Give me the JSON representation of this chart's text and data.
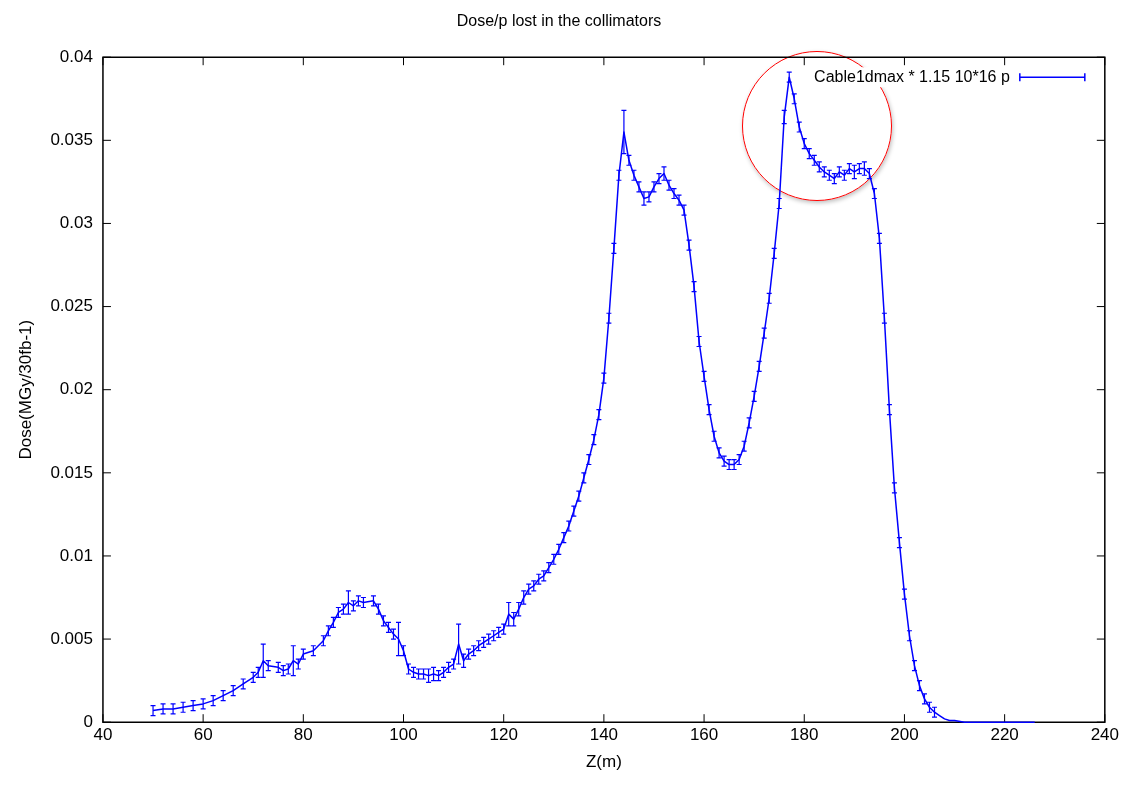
{
  "chart_data": {
    "type": "line",
    "title": "Dose/p lost in the collimators",
    "xlabel": "Z(m)",
    "ylabel": "Dose(MGy/30fb-1)",
    "xlim": [
      40,
      240
    ],
    "xticks": [
      40,
      60,
      80,
      100,
      120,
      140,
      160,
      180,
      200,
      220,
      240
    ],
    "ylim": [
      0,
      0.04
    ],
    "yticks": [
      0,
      0.005,
      0.01,
      0.015,
      0.02,
      0.025,
      0.03,
      0.035,
      0.04
    ],
    "grid": false,
    "legend": "top right",
    "marker": "none",
    "line_style": "solid",
    "series": [
      {
        "name": "Cable1dmax * 1.15 10*16 p",
        "color": "#0000ff",
        "x": [
          50,
          52,
          54,
          56,
          58,
          60,
          62,
          64,
          66,
          68,
          70,
          71,
          72,
          73,
          75,
          76,
          77,
          78,
          79,
          80,
          82,
          84,
          85,
          86,
          87,
          88,
          89,
          90,
          91,
          92,
          94,
          95,
          96,
          97,
          98,
          99,
          100,
          101,
          102,
          103,
          104,
          105,
          106,
          107,
          108,
          109,
          110,
          111,
          112,
          113,
          114,
          115,
          116,
          117,
          118,
          119,
          120,
          121,
          122,
          123,
          124,
          125,
          126,
          127,
          128,
          129,
          130,
          131,
          132,
          133,
          134,
          135,
          136,
          137,
          138,
          139,
          140,
          141,
          142,
          143,
          144,
          145,
          146,
          147,
          148,
          149,
          150,
          151,
          152,
          153,
          154,
          155,
          156,
          157,
          158,
          159,
          160,
          161,
          162,
          163,
          164,
          165,
          166,
          167,
          168,
          169,
          170,
          171,
          172,
          173,
          174,
          175,
          176,
          177,
          178,
          179,
          180,
          181,
          182,
          183,
          184,
          185,
          186,
          187,
          188,
          189,
          190,
          191,
          192,
          193,
          194,
          195,
          196,
          197,
          198,
          199,
          200,
          201,
          202,
          203,
          204,
          205,
          206,
          207,
          208,
          209,
          210,
          212,
          215,
          220,
          226
        ],
        "values": [
          0.0007,
          0.0008,
          0.0008,
          0.0009,
          0.001,
          0.0011,
          0.0013,
          0.0016,
          0.0019,
          0.0023,
          0.0027,
          0.003,
          0.0037,
          0.0034,
          0.0033,
          0.0031,
          0.0032,
          0.0037,
          0.0035,
          0.0041,
          0.0043,
          0.0049,
          0.0055,
          0.006,
          0.0066,
          0.0068,
          0.0072,
          0.007,
          0.0073,
          0.0072,
          0.0073,
          0.0068,
          0.0061,
          0.0057,
          0.0053,
          0.005,
          0.0043,
          0.0032,
          0.003,
          0.0029,
          0.0029,
          0.0028,
          0.0029,
          0.0028,
          0.003,
          0.0033,
          0.0035,
          0.0047,
          0.0037,
          0.0041,
          0.0043,
          0.0046,
          0.0048,
          0.005,
          0.0052,
          0.0054,
          0.0056,
          0.0065,
          0.0062,
          0.0068,
          0.0075,
          0.008,
          0.0082,
          0.0086,
          0.0088,
          0.0093,
          0.0098,
          0.0104,
          0.0111,
          0.0118,
          0.0127,
          0.0136,
          0.0147,
          0.0158,
          0.017,
          0.0185,
          0.0207,
          0.0243,
          0.0285,
          0.0329,
          0.0355,
          0.0338,
          0.0329,
          0.0322,
          0.0315,
          0.0316,
          0.0322,
          0.0327,
          0.033,
          0.0323,
          0.0318,
          0.0314,
          0.0308,
          0.0287,
          0.0262,
          0.0229,
          0.0208,
          0.0188,
          0.0172,
          0.0162,
          0.0157,
          0.0155,
          0.0155,
          0.0158,
          0.0166,
          0.018,
          0.0196,
          0.0214,
          0.0234,
          0.0255,
          0.0282,
          0.0312,
          0.0364,
          0.0388,
          0.0375,
          0.0358,
          0.0348,
          0.0342,
          0.0338,
          0.0334,
          0.0331,
          0.0329,
          0.0327,
          0.0331,
          0.0329,
          0.0333,
          0.0331,
          0.0333,
          0.0333,
          0.033,
          0.0318,
          0.0291,
          0.0243,
          0.0188,
          0.0141,
          0.0108,
          0.0077,
          0.0052,
          0.0034,
          0.0022,
          0.0014,
          0.0009,
          0.0006,
          0.0004,
          0.0002,
          0.0001,
          0.0001,
          0,
          0,
          0,
          0
        ],
        "errors": [
          0.0003,
          0.0003,
          0.0003,
          0.0003,
          0.0003,
          0.0003,
          0.0003,
          0.0003,
          0.0003,
          0.0003,
          0.0003,
          0.0003,
          0.001,
          0.0003,
          0.0003,
          0.0003,
          0.0003,
          0.0009,
          0.0003,
          0.0003,
          0.0003,
          0.0003,
          0.0003,
          0.0003,
          0.0003,
          0.0003,
          0.0007,
          0.0003,
          0.0003,
          0.0003,
          0.0003,
          0.0003,
          0.0003,
          0.0003,
          0.0003,
          0.001,
          0.0003,
          0.0003,
          0.0003,
          0.0003,
          0.0003,
          0.0004,
          0.0004,
          0.0003,
          0.0003,
          0.0003,
          0.0003,
          0.0012,
          0.0004,
          0.0003,
          0.0003,
          0.0003,
          0.0003,
          0.0003,
          0.0003,
          0.0003,
          0.0003,
          0.0007,
          0.0004,
          0.0004,
          0.0004,
          0.0003,
          0.0003,
          0.0003,
          0.0003,
          0.0003,
          0.0003,
          0.0003,
          0.0003,
          0.0003,
          0.0003,
          0.0003,
          0.0003,
          0.0003,
          0.0003,
          0.0003,
          0.0003,
          0.0003,
          0.0003,
          0.0003,
          0.0013,
          0.0003,
          0.0003,
          0.0003,
          0.0004,
          0.0003,
          0.0003,
          0.0003,
          0.0004,
          0.0003,
          0.0003,
          0.0003,
          0.0003,
          0.0003,
          0.0003,
          0.0003,
          0.0003,
          0.0003,
          0.0003,
          0.0003,
          0.0003,
          0.0003,
          0.0003,
          0.0003,
          0.0003,
          0.0003,
          0.0003,
          0.0003,
          0.0003,
          0.0003,
          0.0003,
          0.0003,
          0.0004,
          0.0003,
          0.0003,
          0.0003,
          0.0003,
          0.0003,
          0.0003,
          0.0003,
          0.0003,
          0.0003,
          0.0003,
          0.0003,
          0.0003,
          0.0003,
          0.0004,
          0.0003,
          0.0004,
          0.0003,
          0.0003,
          0.0003,
          0.0003,
          0.0003,
          0.0003,
          0.0003,
          0.0003,
          0.0003,
          0.0003,
          0.0003,
          0.0003,
          0.0003,
          0.0003,
          null,
          null,
          null,
          null,
          null,
          null,
          null,
          null
        ]
      }
    ]
  }
}
